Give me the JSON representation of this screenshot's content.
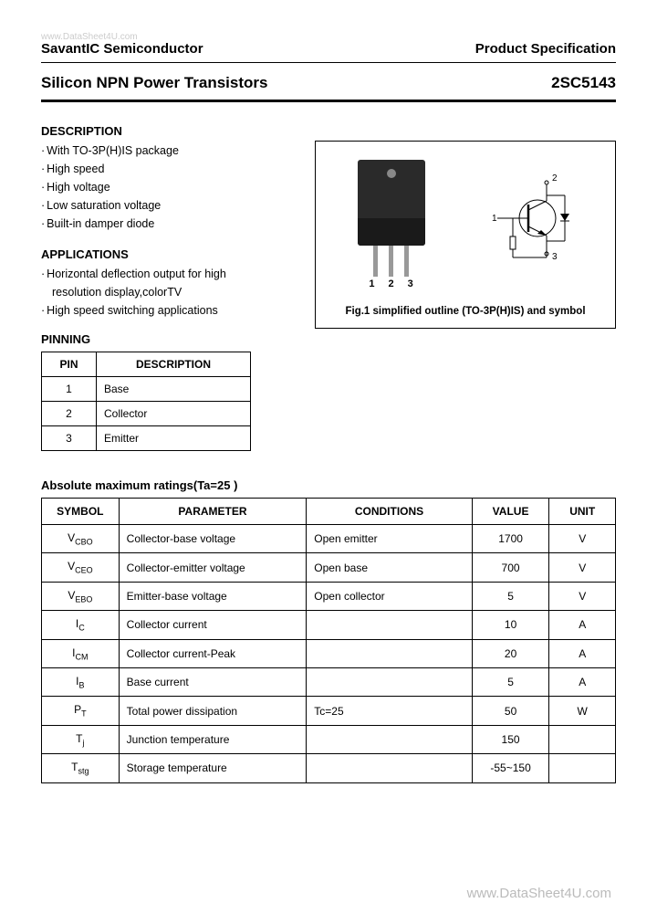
{
  "watermarks": {
    "top": "www.DataSheet4U.com",
    "bottom": "www.DataSheet4U.com"
  },
  "header": {
    "company": "SavantIC Semiconductor",
    "doctype": "Product Specification"
  },
  "title": {
    "product_line": "Silicon NPN Power Transistors",
    "part_number": "2SC5143"
  },
  "description": {
    "heading": "DESCRIPTION",
    "items": [
      "With TO-3P(H)IS package",
      "High speed",
      "High voltage",
      "Low saturation voltage",
      "Built-in damper diode"
    ]
  },
  "applications": {
    "heading": "APPLICATIONS",
    "line1": "Horizontal deflection output for high",
    "line1b": "resolution display,colorTV",
    "line2": "High speed switching applications"
  },
  "pinning": {
    "heading": "PINNING",
    "columns": [
      "PIN",
      "DESCRIPTION"
    ],
    "rows": [
      [
        "1",
        "Base"
      ],
      [
        "2",
        "Collector"
      ],
      [
        "3",
        "Emitter"
      ]
    ]
  },
  "figure": {
    "pin_labels": [
      "1",
      "2",
      "3"
    ],
    "symbol_pins": {
      "p1": "1",
      "p2": "2",
      "p3": "3"
    },
    "caption": "Fig.1 simplified outline (TO-3P(H)IS) and symbol"
  },
  "ratings": {
    "heading": "Absolute maximum ratings(Ta=25   )",
    "columns": [
      "SYMBOL",
      "PARAMETER",
      "CONDITIONS",
      "VALUE",
      "UNIT"
    ],
    "rows": [
      {
        "sym": "V",
        "sub": "CBO",
        "param": "Collector-base voltage",
        "cond": "Open emitter",
        "val": "1700",
        "unit": "V"
      },
      {
        "sym": "V",
        "sub": "CEO",
        "param": "Collector-emitter voltage",
        "cond": "Open base",
        "val": "700",
        "unit": "V"
      },
      {
        "sym": "V",
        "sub": "EBO",
        "param": "Emitter-base voltage",
        "cond": "Open collector",
        "val": "5",
        "unit": "V"
      },
      {
        "sym": "I",
        "sub": "C",
        "param": "Collector current",
        "cond": "",
        "val": "10",
        "unit": "A"
      },
      {
        "sym": "I",
        "sub": "CM",
        "param": "Collector current-Peak",
        "cond": "",
        "val": "20",
        "unit": "A"
      },
      {
        "sym": "I",
        "sub": "B",
        "param": "Base current",
        "cond": "",
        "val": "5",
        "unit": "A"
      },
      {
        "sym": "P",
        "sub": "T",
        "param": "Total power dissipation",
        "cond": "Tc=25  ",
        "val": "50",
        "unit": "W"
      },
      {
        "sym": "T",
        "sub": "j",
        "param": "Junction temperature",
        "cond": "",
        "val": "150",
        "unit": " "
      },
      {
        "sym": "T",
        "sub": "stg",
        "param": "Storage temperature",
        "cond": "",
        "val": "-55~150",
        "unit": " "
      }
    ]
  },
  "colors": {
    "text": "#000000",
    "border": "#000000",
    "watermark": "#bbbbbb",
    "package_body": "#2a2a2a",
    "package_shade": "#1a1a1a",
    "pin_metal": "#999999"
  }
}
